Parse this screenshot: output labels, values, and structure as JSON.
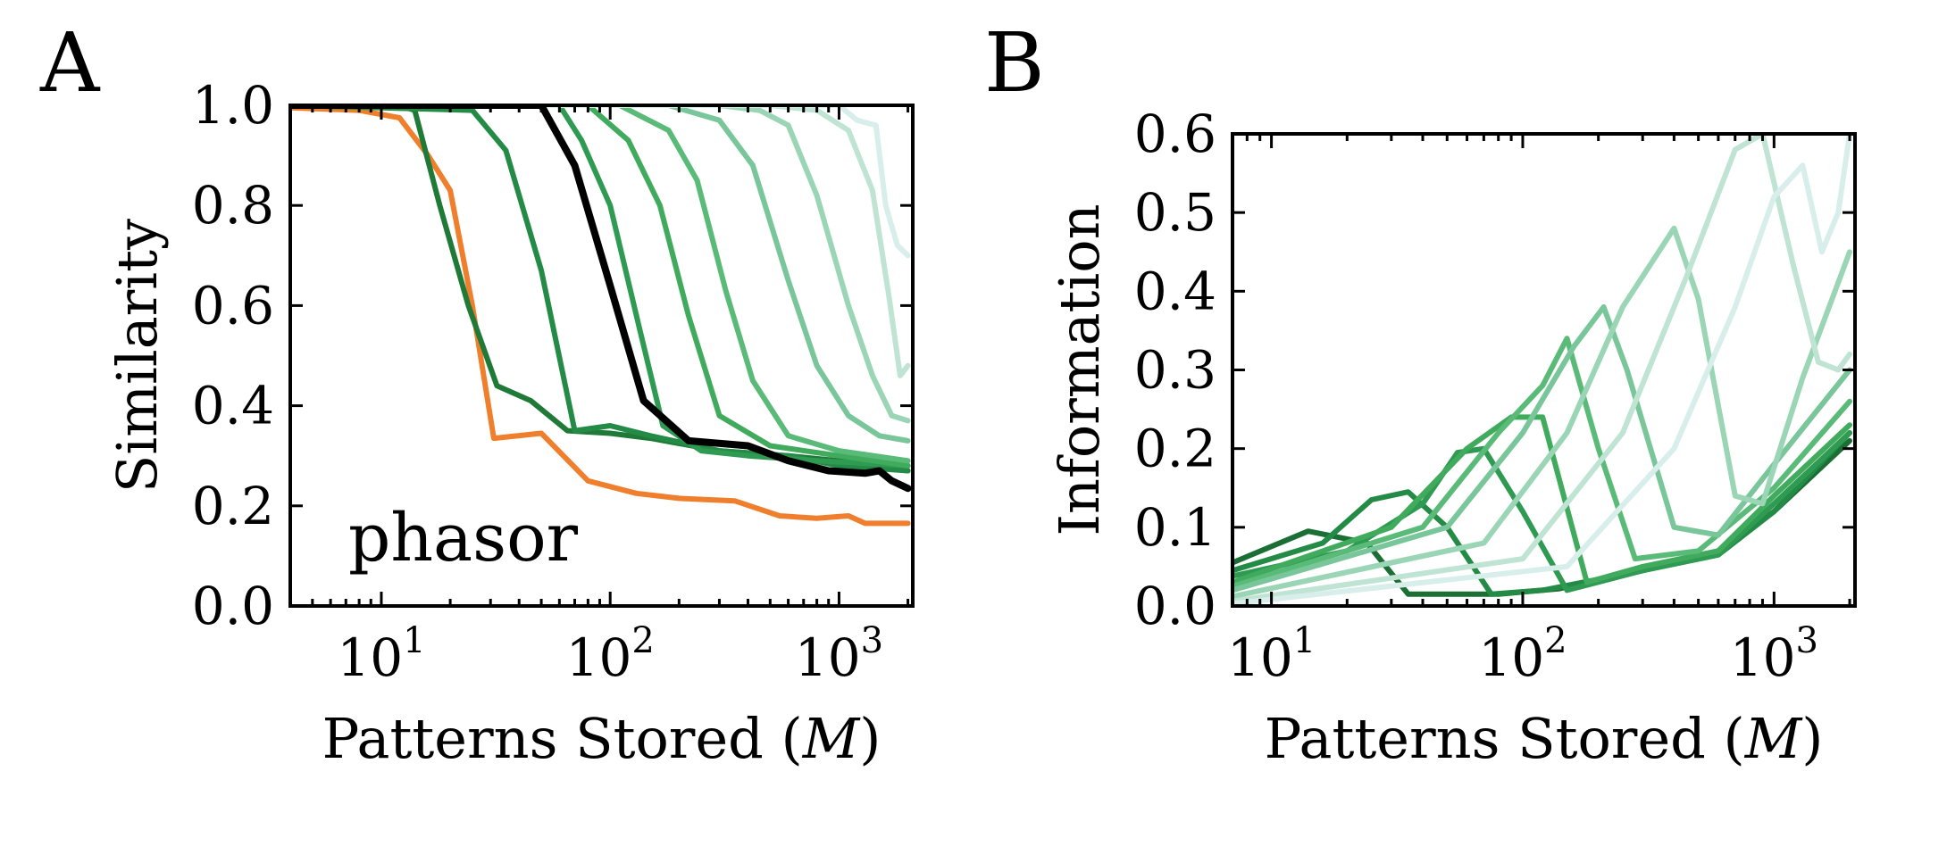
{
  "figure": {
    "panel_a_label": "A",
    "panel_b_label": "B"
  },
  "chart_data": [
    {
      "type": "line",
      "panel": "A",
      "title": "",
      "annotation": "phasor",
      "xlabel": "Patterns Stored (M)",
      "xlabel_text": "Patterns Stored (",
      "xlabel_var": "M",
      "xlabel_close": ")",
      "ylabel": "Similarity",
      "xscale": "log",
      "xlim": [
        4,
        2100
      ],
      "ylim": [
        0,
        1.0
      ],
      "xticks": [
        10,
        100,
        1000
      ],
      "xtick_labels": [
        {
          "base": "10",
          "exp": "1"
        },
        {
          "base": "10",
          "exp": "2"
        },
        {
          "base": "10",
          "exp": "3"
        }
      ],
      "yticks": [
        "0.0",
        "0.2",
        "0.4",
        "0.6",
        "0.8",
        "1.0"
      ],
      "series": [
        {
          "name": "orange",
          "color": "#f07f2d",
          "width": 6,
          "points": [
            [
              4,
              0.995
            ],
            [
              8,
              0.99
            ],
            [
              12,
              0.975
            ],
            [
              16,
              0.9
            ],
            [
              20,
              0.83
            ],
            [
              25,
              0.6
            ],
            [
              31,
              0.335
            ],
            [
              50,
              0.345
            ],
            [
              80,
              0.25
            ],
            [
              130,
              0.225
            ],
            [
              200,
              0.215
            ],
            [
              350,
              0.21
            ],
            [
              550,
              0.18
            ],
            [
              800,
              0.175
            ],
            [
              1100,
              0.18
            ],
            [
              1300,
              0.165
            ],
            [
              2000,
              0.165
            ]
          ]
        },
        {
          "name": "green-1",
          "color": "#1f7a37",
          "width": 6,
          "points": [
            [
              4,
              1.0
            ],
            [
              12,
              1.0
            ],
            [
              14,
              0.99
            ],
            [
              18,
              0.8
            ],
            [
              24,
              0.6
            ],
            [
              32,
              0.44
            ],
            [
              45,
              0.41
            ],
            [
              65,
              0.35
            ],
            [
              100,
              0.345
            ],
            [
              150,
              0.335
            ],
            [
              300,
              0.31
            ],
            [
              600,
              0.3
            ],
            [
              1000,
              0.29
            ],
            [
              2000,
              0.27
            ]
          ]
        },
        {
          "name": "green-2",
          "color": "#238b45",
          "width": 6,
          "points": [
            [
              4,
              1.0
            ],
            [
              25,
              0.99
            ],
            [
              35,
              0.91
            ],
            [
              50,
              0.67
            ],
            [
              70,
              0.35
            ],
            [
              100,
              0.36
            ],
            [
              150,
              0.34
            ],
            [
              300,
              0.31
            ],
            [
              600,
              0.3
            ],
            [
              1000,
              0.28
            ],
            [
              2000,
              0.27
            ]
          ]
        },
        {
          "name": "green-3",
          "color": "#2e9a52",
          "width": 6,
          "points": [
            [
              4,
              1.0
            ],
            [
              60,
              1.0
            ],
            [
              75,
              0.93
            ],
            [
              100,
              0.8
            ],
            [
              135,
              0.55
            ],
            [
              170,
              0.36
            ],
            [
              250,
              0.31
            ],
            [
              400,
              0.3
            ],
            [
              800,
              0.29
            ],
            [
              2000,
              0.28
            ]
          ]
        },
        {
          "name": "green-4",
          "color": "#41ab5d",
          "width": 6,
          "points": [
            [
              4,
              1.0
            ],
            [
              80,
              1.0
            ],
            [
              120,
              0.93
            ],
            [
              165,
              0.8
            ],
            [
              220,
              0.58
            ],
            [
              300,
              0.38
            ],
            [
              500,
              0.32
            ],
            [
              1000,
              0.3
            ],
            [
              2000,
              0.28
            ]
          ]
        },
        {
          "name": "green-5",
          "color": "#5aba78",
          "width": 6,
          "points": [
            [
              4,
              1.0
            ],
            [
              110,
              1.0
            ],
            [
              180,
              0.95
            ],
            [
              240,
              0.85
            ],
            [
              320,
              0.63
            ],
            [
              420,
              0.45
            ],
            [
              600,
              0.34
            ],
            [
              1000,
              0.31
            ],
            [
              2000,
              0.29
            ]
          ]
        },
        {
          "name": "green-6",
          "color": "#79c69a",
          "width": 6,
          "points": [
            [
              4,
              1.0
            ],
            [
              180,
              1.0
            ],
            [
              300,
              0.97
            ],
            [
              420,
              0.88
            ],
            [
              600,
              0.65
            ],
            [
              800,
              0.48
            ],
            [
              1100,
              0.38
            ],
            [
              1500,
              0.34
            ],
            [
              2000,
              0.33
            ]
          ]
        },
        {
          "name": "green-7",
          "color": "#9ad5b6",
          "width": 6,
          "points": [
            [
              4,
              1.0
            ],
            [
              300,
              1.0
            ],
            [
              450,
              0.99
            ],
            [
              600,
              0.96
            ],
            [
              800,
              0.82
            ],
            [
              1100,
              0.6
            ],
            [
              1400,
              0.46
            ],
            [
              1700,
              0.38
            ],
            [
              2000,
              0.37
            ]
          ]
        },
        {
          "name": "green-8",
          "color": "#bfe4d4",
          "width": 6,
          "points": [
            [
              4,
              1.0
            ],
            [
              500,
              1.0
            ],
            [
              800,
              0.99
            ],
            [
              1100,
              0.95
            ],
            [
              1400,
              0.83
            ],
            [
              1650,
              0.62
            ],
            [
              1850,
              0.46
            ],
            [
              2000,
              0.48
            ]
          ]
        },
        {
          "name": "green-9",
          "color": "#d8eeea",
          "width": 6,
          "points": [
            [
              4,
              1.0
            ],
            [
              700,
              1.0
            ],
            [
              1000,
              1.0
            ],
            [
              1200,
              0.97
            ],
            [
              1450,
              0.96
            ],
            [
              1600,
              0.8
            ],
            [
              1800,
              0.72
            ],
            [
              2000,
              0.7
            ]
          ]
        },
        {
          "name": "black",
          "color": "#000000",
          "width": 8,
          "points": [
            [
              4,
              1.0
            ],
            [
              50,
              1.0
            ],
            [
              70,
              0.88
            ],
            [
              100,
              0.64
            ],
            [
              140,
              0.41
            ],
            [
              220,
              0.33
            ],
            [
              400,
              0.32
            ],
            [
              600,
              0.29
            ],
            [
              900,
              0.27
            ],
            [
              1300,
              0.265
            ],
            [
              1500,
              0.27
            ],
            [
              1700,
              0.25
            ],
            [
              2000,
              0.235
            ]
          ]
        }
      ]
    },
    {
      "type": "line",
      "panel": "B",
      "title": "",
      "xlabel": "Patterns Stored (M)",
      "xlabel_text": "Patterns Stored (",
      "xlabel_var": "M",
      "xlabel_close": ")",
      "ylabel": "Information",
      "xscale": "log",
      "xlim": [
        7,
        2100
      ],
      "ylim": [
        0,
        0.6
      ],
      "xticks": [
        10,
        100,
        1000
      ],
      "xtick_labels": [
        {
          "base": "10",
          "exp": "1"
        },
        {
          "base": "10",
          "exp": "2"
        },
        {
          "base": "10",
          "exp": "3"
        }
      ],
      "yticks": [
        "0.0",
        "0.1",
        "0.2",
        "0.3",
        "0.4",
        "0.5",
        "0.6"
      ],
      "series": [
        {
          "name": "green-1",
          "color": "#1b6e34",
          "width": 6,
          "points": [
            [
              7,
              0.055
            ],
            [
              14,
              0.095
            ],
            [
              24,
              0.08
            ],
            [
              35,
              0.015
            ],
            [
              80,
              0.015
            ],
            [
              140,
              0.022
            ],
            [
              300,
              0.045
            ],
            [
              600,
              0.07
            ],
            [
              1000,
              0.12
            ],
            [
              2000,
              0.21
            ]
          ]
        },
        {
          "name": "green-2",
          "color": "#238b45",
          "width": 6,
          "points": [
            [
              7,
              0.045
            ],
            [
              16,
              0.08
            ],
            [
              25,
              0.135
            ],
            [
              35,
              0.145
            ],
            [
              50,
              0.1
            ],
            [
              75,
              0.015
            ],
            [
              120,
              0.02
            ],
            [
              300,
              0.045
            ],
            [
              600,
              0.065
            ],
            [
              1000,
              0.12
            ],
            [
              2000,
              0.22
            ]
          ]
        },
        {
          "name": "green-3",
          "color": "#2e9a52",
          "width": 6,
          "points": [
            [
              7,
              0.038
            ],
            [
              20,
              0.07
            ],
            [
              40,
              0.13
            ],
            [
              55,
              0.195
            ],
            [
              70,
              0.2
            ],
            [
              100,
              0.12
            ],
            [
              150,
              0.02
            ],
            [
              300,
              0.045
            ],
            [
              600,
              0.065
            ],
            [
              1000,
              0.13
            ],
            [
              2000,
              0.22
            ]
          ]
        },
        {
          "name": "green-4",
          "color": "#41ab5d",
          "width": 6,
          "points": [
            [
              7,
              0.03
            ],
            [
              30,
              0.1
            ],
            [
              60,
              0.2
            ],
            [
              90,
              0.24
            ],
            [
              120,
              0.24
            ],
            [
              180,
              0.03
            ],
            [
              300,
              0.05
            ],
            [
              600,
              0.07
            ],
            [
              1000,
              0.14
            ],
            [
              2000,
              0.23
            ]
          ]
        },
        {
          "name": "green-5",
          "color": "#5aba78",
          "width": 6,
          "points": [
            [
              7,
              0.025
            ],
            [
              40,
              0.1
            ],
            [
              80,
              0.22
            ],
            [
              120,
              0.28
            ],
            [
              150,
              0.34
            ],
            [
              200,
              0.2
            ],
            [
              280,
              0.06
            ],
            [
              500,
              0.07
            ],
            [
              1000,
              0.15
            ],
            [
              2000,
              0.26
            ]
          ]
        },
        {
          "name": "green-6",
          "color": "#79c69a",
          "width": 6,
          "points": [
            [
              7,
              0.02
            ],
            [
              50,
              0.1
            ],
            [
              100,
              0.22
            ],
            [
              160,
              0.33
            ],
            [
              210,
              0.38
            ],
            [
              260,
              0.3
            ],
            [
              400,
              0.1
            ],
            [
              600,
              0.09
            ],
            [
              1000,
              0.18
            ],
            [
              2000,
              0.3
            ]
          ]
        },
        {
          "name": "green-7",
          "color": "#9ad5b6",
          "width": 6,
          "points": [
            [
              7,
              0.012
            ],
            [
              70,
              0.08
            ],
            [
              150,
              0.22
            ],
            [
              250,
              0.38
            ],
            [
              400,
              0.48
            ],
            [
              500,
              0.39
            ],
            [
              700,
              0.14
            ],
            [
              900,
              0.13
            ],
            [
              1300,
              0.29
            ],
            [
              2000,
              0.45
            ]
          ]
        },
        {
          "name": "green-8",
          "color": "#bfe4d4",
          "width": 6,
          "points": [
            [
              7,
              0.006
            ],
            [
              100,
              0.06
            ],
            [
              250,
              0.22
            ],
            [
              450,
              0.42
            ],
            [
              700,
              0.58
            ],
            [
              900,
              0.6
            ],
            [
              1200,
              0.43
            ],
            [
              1500,
              0.31
            ],
            [
              1800,
              0.3
            ],
            [
              2000,
              0.32
            ]
          ]
        },
        {
          "name": "green-9",
          "color": "#d8eeea",
          "width": 6,
          "points": [
            [
              7,
              0.003
            ],
            [
              150,
              0.05
            ],
            [
              400,
              0.2
            ],
            [
              700,
              0.38
            ],
            [
              1000,
              0.52
            ],
            [
              1300,
              0.56
            ],
            [
              1550,
              0.45
            ],
            [
              1800,
              0.5
            ],
            [
              2000,
              0.6
            ]
          ]
        }
      ]
    }
  ]
}
